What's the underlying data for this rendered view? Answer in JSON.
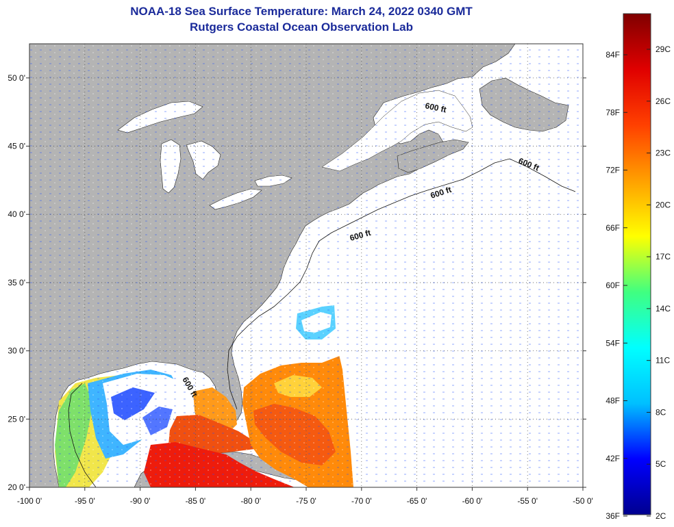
{
  "header": {
    "title_line1": "NOAA-18 Sea Surface Temperature:  March 24, 2022 0340 GMT",
    "title_line2": "Rutgers Coastal Ocean Observation Lab"
  },
  "map": {
    "lon_range": [
      -100,
      -50
    ],
    "lat_range": [
      20,
      52.5
    ],
    "lon_ticks": [
      "-100 0'",
      "-95 0'",
      "-90 0'",
      "-85 0'",
      "-80 0'",
      "-75 0'",
      "-70 0'",
      "-65 0'",
      "-60 0'",
      "-55 0'",
      "-50 0'"
    ],
    "lat_ticks": [
      "20 0'",
      "25 0'",
      "30 0'",
      "35 0'",
      "40 0'",
      "45 0'",
      "50 0'"
    ],
    "contour_labels": [
      "600 ft",
      "600 ft",
      "600 ft",
      "600 ft",
      "600 ft"
    ],
    "land_color": "#b4b4b4",
    "grid": "dotted"
  },
  "colorbar": {
    "f_labels": [
      "84F",
      "78F",
      "72F",
      "66F",
      "60F",
      "54F",
      "48F",
      "42F",
      "36F"
    ],
    "c_labels": [
      "29C",
      "26C",
      "23C",
      "20C",
      "17C",
      "14C",
      "11C",
      "8C",
      "5C",
      "2C"
    ],
    "colors": [
      "#00008f",
      "#0000ff",
      "#00c0ff",
      "#00ffff",
      "#40ff80",
      "#ffff00",
      "#ffa000",
      "#ff4000",
      "#e00000",
      "#800000"
    ]
  }
}
